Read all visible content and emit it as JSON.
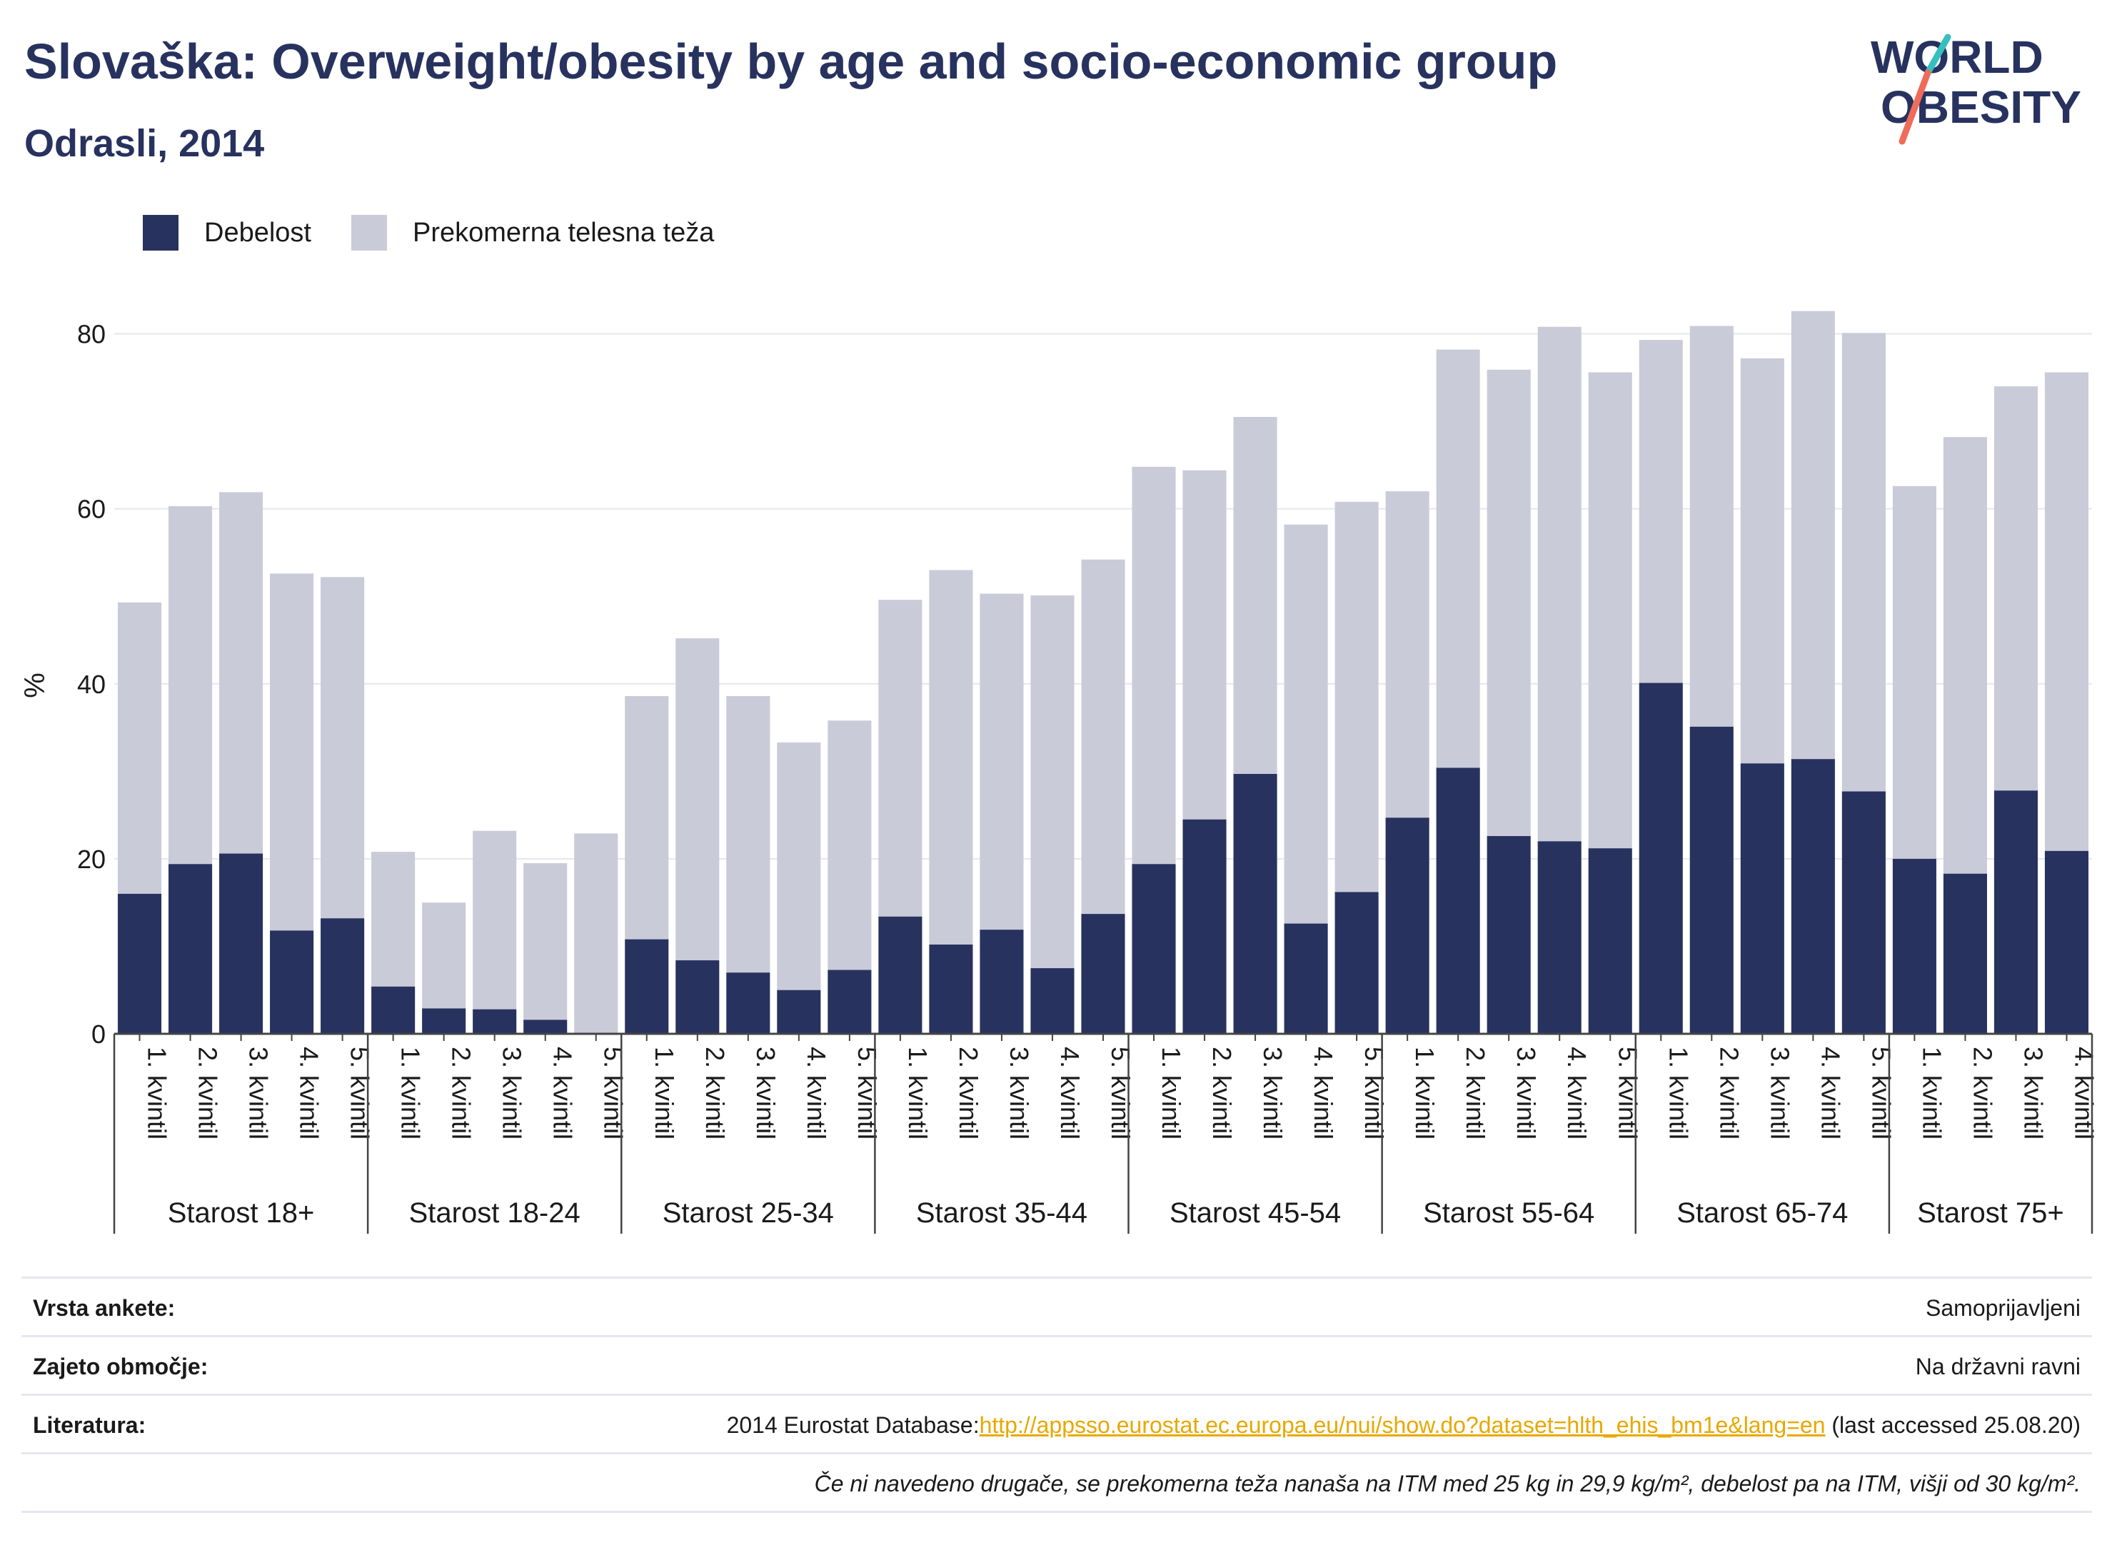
{
  "header": {
    "title": "Slovaška: Overweight/obesity by age and socio-economic group",
    "subtitle": "Odrasli, 2014"
  },
  "logo": {
    "line1": "WORLD",
    "line2": "OBESITY"
  },
  "colors": {
    "obesity": "#27325f",
    "overweight": "#c9cbd8",
    "title": "#27325f",
    "link": "#e8a800"
  },
  "chart_data": {
    "type": "bar",
    "stacked": true,
    "ylabel": "%",
    "ylim": [
      0,
      90
    ],
    "yticks": [
      0,
      20,
      40,
      60,
      80
    ],
    "grid": true,
    "legend_position": "top-left",
    "groups": [
      {
        "label": "Starost 18+",
        "categories": [
          "1. kvintil",
          "2. kvintil",
          "3. kvintil",
          "4. kvintil",
          "5. kvintil"
        ]
      },
      {
        "label": "Starost 18-24",
        "categories": [
          "1. kvintil",
          "2. kvintil",
          "3. kvintil",
          "4. kvintil",
          "5. kvintil"
        ]
      },
      {
        "label": "Starost 25-34",
        "categories": [
          "1. kvintil",
          "2. kvintil",
          "3. kvintil",
          "4. kvintil",
          "5. kvintil"
        ]
      },
      {
        "label": "Starost 35-44",
        "categories": [
          "1. kvintil",
          "2. kvintil",
          "3. kvintil",
          "4. kvintil",
          "5. kvintil"
        ]
      },
      {
        "label": "Starost 45-54",
        "categories": [
          "1. kvintil",
          "2. kvintil",
          "3. kvintil",
          "4. kvintil",
          "5. kvintil"
        ]
      },
      {
        "label": "Starost 55-64",
        "categories": [
          "1. kvintil",
          "2. kvintil",
          "3. kvintil",
          "4. kvintil",
          "5. kvintil"
        ]
      },
      {
        "label": "Starost 65-74",
        "categories": [
          "1. kvintil",
          "2. kvintil",
          "3. kvintil",
          "4. kvintil",
          "5. kvintil"
        ]
      },
      {
        "label": "Starost 75+",
        "categories": [
          "1. kvintil",
          "2. kvintil",
          "3. kvintil",
          "4. kvintil"
        ]
      }
    ],
    "series": [
      {
        "name": "Debelost",
        "values": [
          16.0,
          19.4,
          20.6,
          11.8,
          13.2,
          5.4,
          2.9,
          2.8,
          1.6,
          0.0,
          10.8,
          8.4,
          7.0,
          5.0,
          7.3,
          13.4,
          10.2,
          11.9,
          7.5,
          13.7,
          19.4,
          24.5,
          29.7,
          12.6,
          16.2,
          24.7,
          30.4,
          22.6,
          22.0,
          21.2,
          40.1,
          35.1,
          30.9,
          31.4,
          27.7,
          20.0,
          18.3,
          27.8,
          20.9
        ]
      },
      {
        "name": "Prekomerna telesna teža",
        "values": [
          33.3,
          40.9,
          41.3,
          40.8,
          39.0,
          15.4,
          12.1,
          20.4,
          17.9,
          22.9,
          27.8,
          36.8,
          31.6,
          28.3,
          28.5,
          36.2,
          42.8,
          38.4,
          42.6,
          40.5,
          45.4,
          39.9,
          40.8,
          45.6,
          44.6,
          37.3,
          47.8,
          53.3,
          58.8,
          54.4,
          39.2,
          45.8,
          46.3,
          51.2,
          52.4,
          42.6,
          49.9,
          46.2,
          54.7
        ]
      }
    ]
  },
  "meta": {
    "rows": [
      {
        "label": "Vrsta ankete:",
        "value": "Samoprijavljeni"
      },
      {
        "label": "Zajeto območje:",
        "value": "Na državni ravni"
      }
    ],
    "literature": {
      "label": "Literatura:",
      "prefix": "2014 Eurostat Database:",
      "link": "http://appsso.eurostat.ec.europa.eu/nui/show.do?dataset=hlth_ehis_bm1e&lang=en",
      "suffix": " (last accessed 25.08.20)"
    },
    "note": "Če ni navedeno drugače, se prekomerna teža nanaša na ITM med 25 kg in 29,9 kg/m², debelost pa na ITM, višji od 30 kg/m²."
  }
}
